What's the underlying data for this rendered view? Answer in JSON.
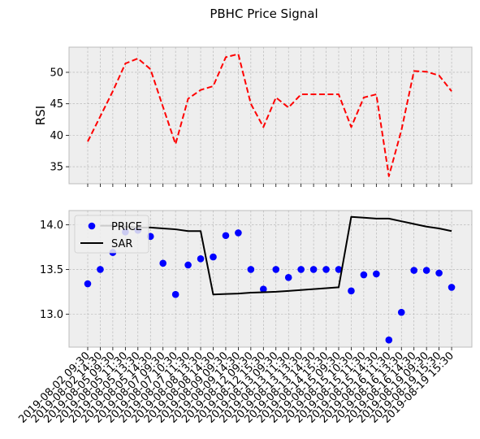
{
  "chart_data": {
    "type": "line",
    "title": "PBHC Price Signal",
    "colors": {
      "rsi": "#ff0000",
      "price": "#0000ff",
      "sar": "#000000",
      "axes_bg": "#eeeeee",
      "axes_edge": "#bcbcbc",
      "grid": "#b0b0b0"
    },
    "x": [
      "2019-08-02 09:30",
      "2019-08-02 14:30",
      "2019-08-05 09:30",
      "2019-08-05 11:30",
      "2019-08-05 13:30",
      "2019-08-05 14:30",
      "2019-08-07 09:30",
      "2019-08-07 10:30",
      "2019-08-07 11:30",
      "2019-08-08 13:30",
      "2019-08-08 14:30",
      "2019-08-09 09:30",
      "2019-08-09 14:30",
      "2019-08-12 09:30",
      "2019-08-12 15:30",
      "2019-08-13 09:30",
      "2019-08-13 11:30",
      "2019-08-13 13:30",
      "2019-08-13 14:30",
      "2019-08-14 15:30",
      "2019-08-15 09:30",
      "2019-08-15 10:30",
      "2019-08-15 11:30",
      "2019-08-15 14:30",
      "2019-08-16 11:30",
      "2019-08-16 13:30",
      "2019-08-16 14:30",
      "2019-08-19 09:30",
      "2019-08-19 15:30",
      "2019-08-19 15:30"
    ],
    "panels": [
      {
        "ylabel": "RSI",
        "ylim": [
          32.3,
          54.0
        ],
        "yticks": [
          35,
          40,
          45,
          50
        ],
        "grid": true,
        "series": [
          {
            "style": "dashed-line",
            "color_key": "rsi",
            "values": [
              39.0,
              43.0,
              47.0,
              51.4,
              52.2,
              50.5,
              44.5,
              38.6,
              45.8,
              47.2,
              47.8,
              52.4,
              52.9,
              45.0,
              41.3,
              46.0,
              44.4,
              46.5,
              46.5,
              46.5,
              46.5,
              41.3,
              46.0,
              46.5,
              33.5,
              40.8,
              50.2,
              50.1,
              49.5,
              47.0
            ]
          }
        ]
      },
      {
        "ylim": [
          12.63,
          14.16
        ],
        "yticks": [
          "13.0",
          "13.5",
          "14.0"
        ],
        "grid": true,
        "legend": {
          "position": "top-left",
          "entries": [
            "PRICE",
            "SAR"
          ]
        },
        "series": [
          {
            "name": "PRICE",
            "style": "points",
            "color_key": "price",
            "values": [
              13.34,
              13.5,
              13.69,
              13.92,
              13.94,
              13.87,
              13.57,
              13.22,
              13.55,
              13.62,
              13.64,
              13.88,
              13.91,
              13.5,
              13.28,
              13.5,
              13.41,
              13.5,
              13.5,
              13.5,
              13.5,
              13.26,
              13.44,
              13.45,
              12.71,
              13.02,
              13.49,
              13.49,
              13.46,
              13.3
            ]
          },
          {
            "name": "SAR",
            "style": "line",
            "color_key": "sar",
            "values": [
              null,
              13.99,
              13.99,
              13.98,
              13.97,
              13.97,
              13.96,
              13.95,
              13.93,
              13.93,
              13.22,
              13.225,
              13.23,
              13.24,
              13.245,
              13.25,
              13.26,
              13.27,
              13.28,
              13.29,
              13.3,
              14.09,
              14.08,
              14.07,
              14.07,
              14.04,
              14.01,
              13.98,
              13.96,
              13.93
            ]
          }
        ]
      }
    ]
  }
}
